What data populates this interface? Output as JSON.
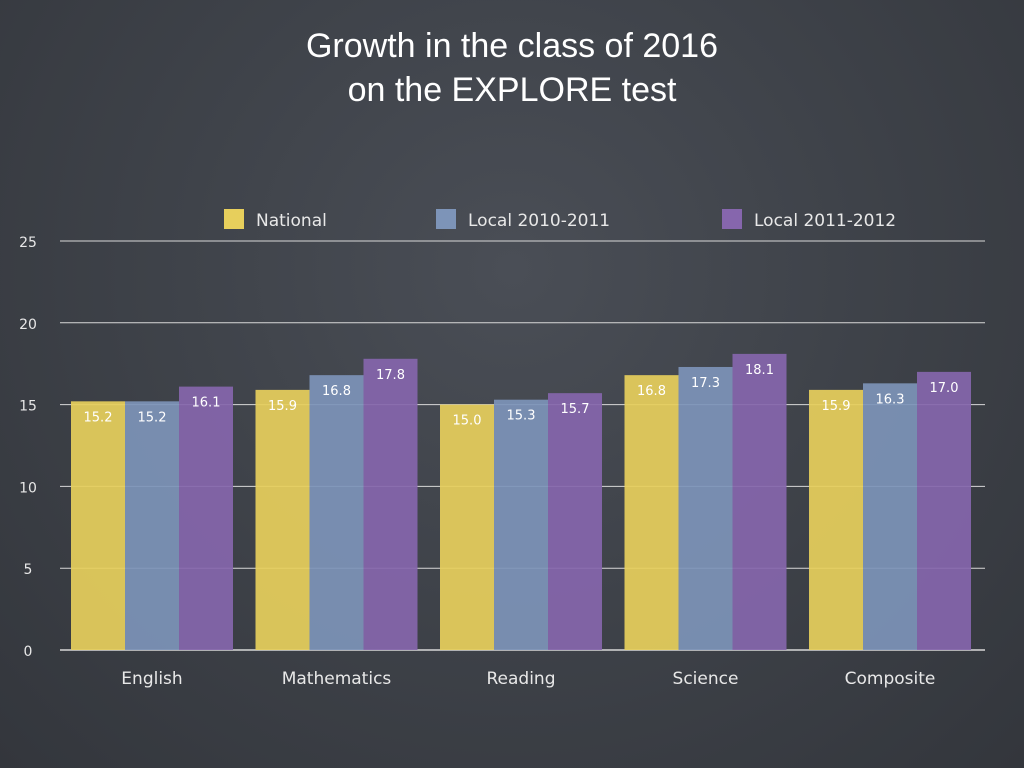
{
  "slide": {
    "title_line1": "Growth in the class of 2016",
    "title_line2": "on the EXPLORE test"
  },
  "chart_data": {
    "type": "bar",
    "categories": [
      "English",
      "Mathematics",
      "Reading",
      "Science",
      "Composite"
    ],
    "series": [
      {
        "name": "National",
        "values": [
          15.2,
          15.9,
          15.0,
          16.8,
          15.9
        ],
        "color": "#e7cf5c"
      },
      {
        "name": "Local 2010-2011",
        "values": [
          15.2,
          16.8,
          15.3,
          17.3,
          16.3
        ],
        "color": "#7d94b8"
      },
      {
        "name": "Local 2011-2012",
        "values": [
          16.1,
          17.8,
          15.7,
          18.1,
          17.0
        ],
        "color": "#8666ad"
      }
    ],
    "data_labels": [
      [
        "15.2",
        "15.9",
        "15.0",
        "16.8",
        "15.9"
      ],
      [
        "15.2",
        "16.8",
        "15.3",
        "17.3",
        "16.3"
      ],
      [
        "16.1",
        "17.8",
        "15.7",
        "18.1",
        "17.0"
      ]
    ],
    "ylim": [
      0,
      25
    ],
    "yticks": [
      0,
      5,
      10,
      15,
      20,
      25
    ],
    "ytick_labels": [
      "0",
      "5",
      "10",
      "15",
      "20",
      "25"
    ],
    "grid": true,
    "legend_position": "top"
  }
}
